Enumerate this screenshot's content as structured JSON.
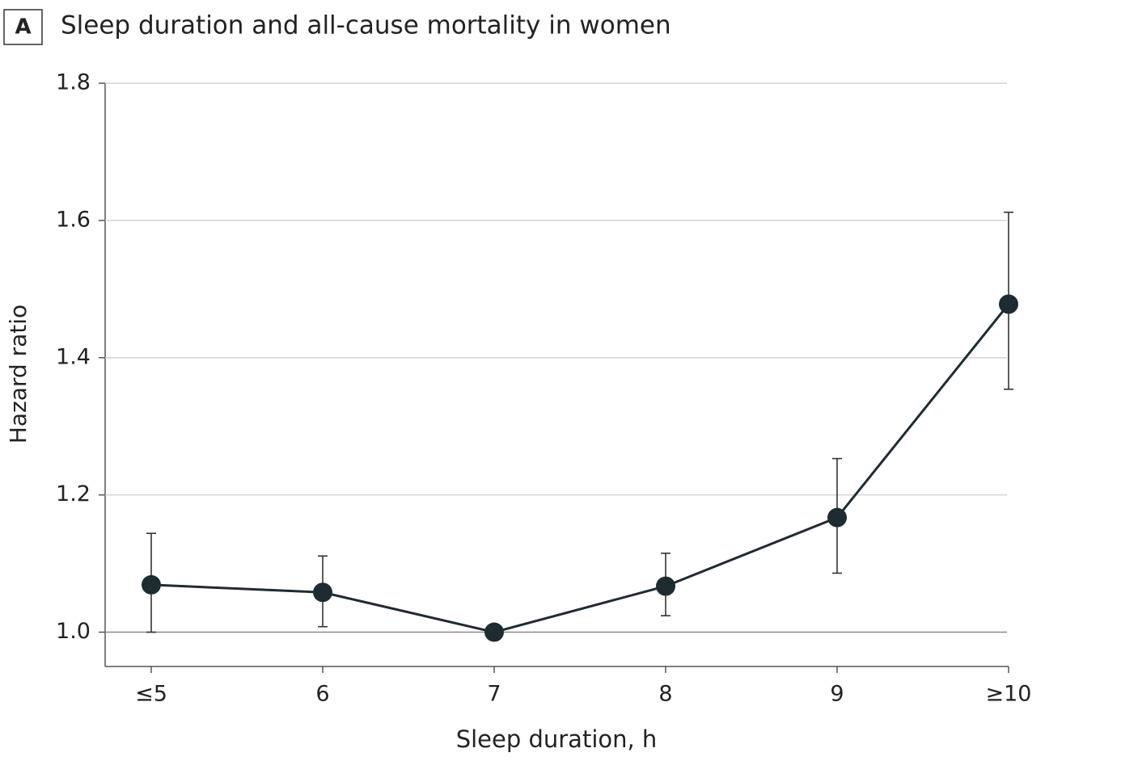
{
  "chart_data": {
    "type": "line",
    "panel_label": "A",
    "title": "Sleep duration and all-cause mortality in women",
    "xlabel": "Sleep duration, h",
    "ylabel": "Hazard ratio",
    "categories": [
      "≤5",
      "6",
      "7",
      "8",
      "9",
      "≥10"
    ],
    "values": [
      1.069,
      1.058,
      1.0,
      1.067,
      1.167,
      1.478
    ],
    "ci_lower": [
      1.0,
      1.008,
      null,
      1.024,
      1.086,
      1.354
    ],
    "ci_upper": [
      1.144,
      1.111,
      null,
      1.115,
      1.253,
      1.612
    ],
    "color": "#1e2c31",
    "ylim": [
      0.95,
      1.8
    ],
    "yticks": [
      {
        "value": 1,
        "label": "1.0"
      },
      1.2,
      1.4,
      1.6,
      1.8
    ],
    "grid": true
  }
}
